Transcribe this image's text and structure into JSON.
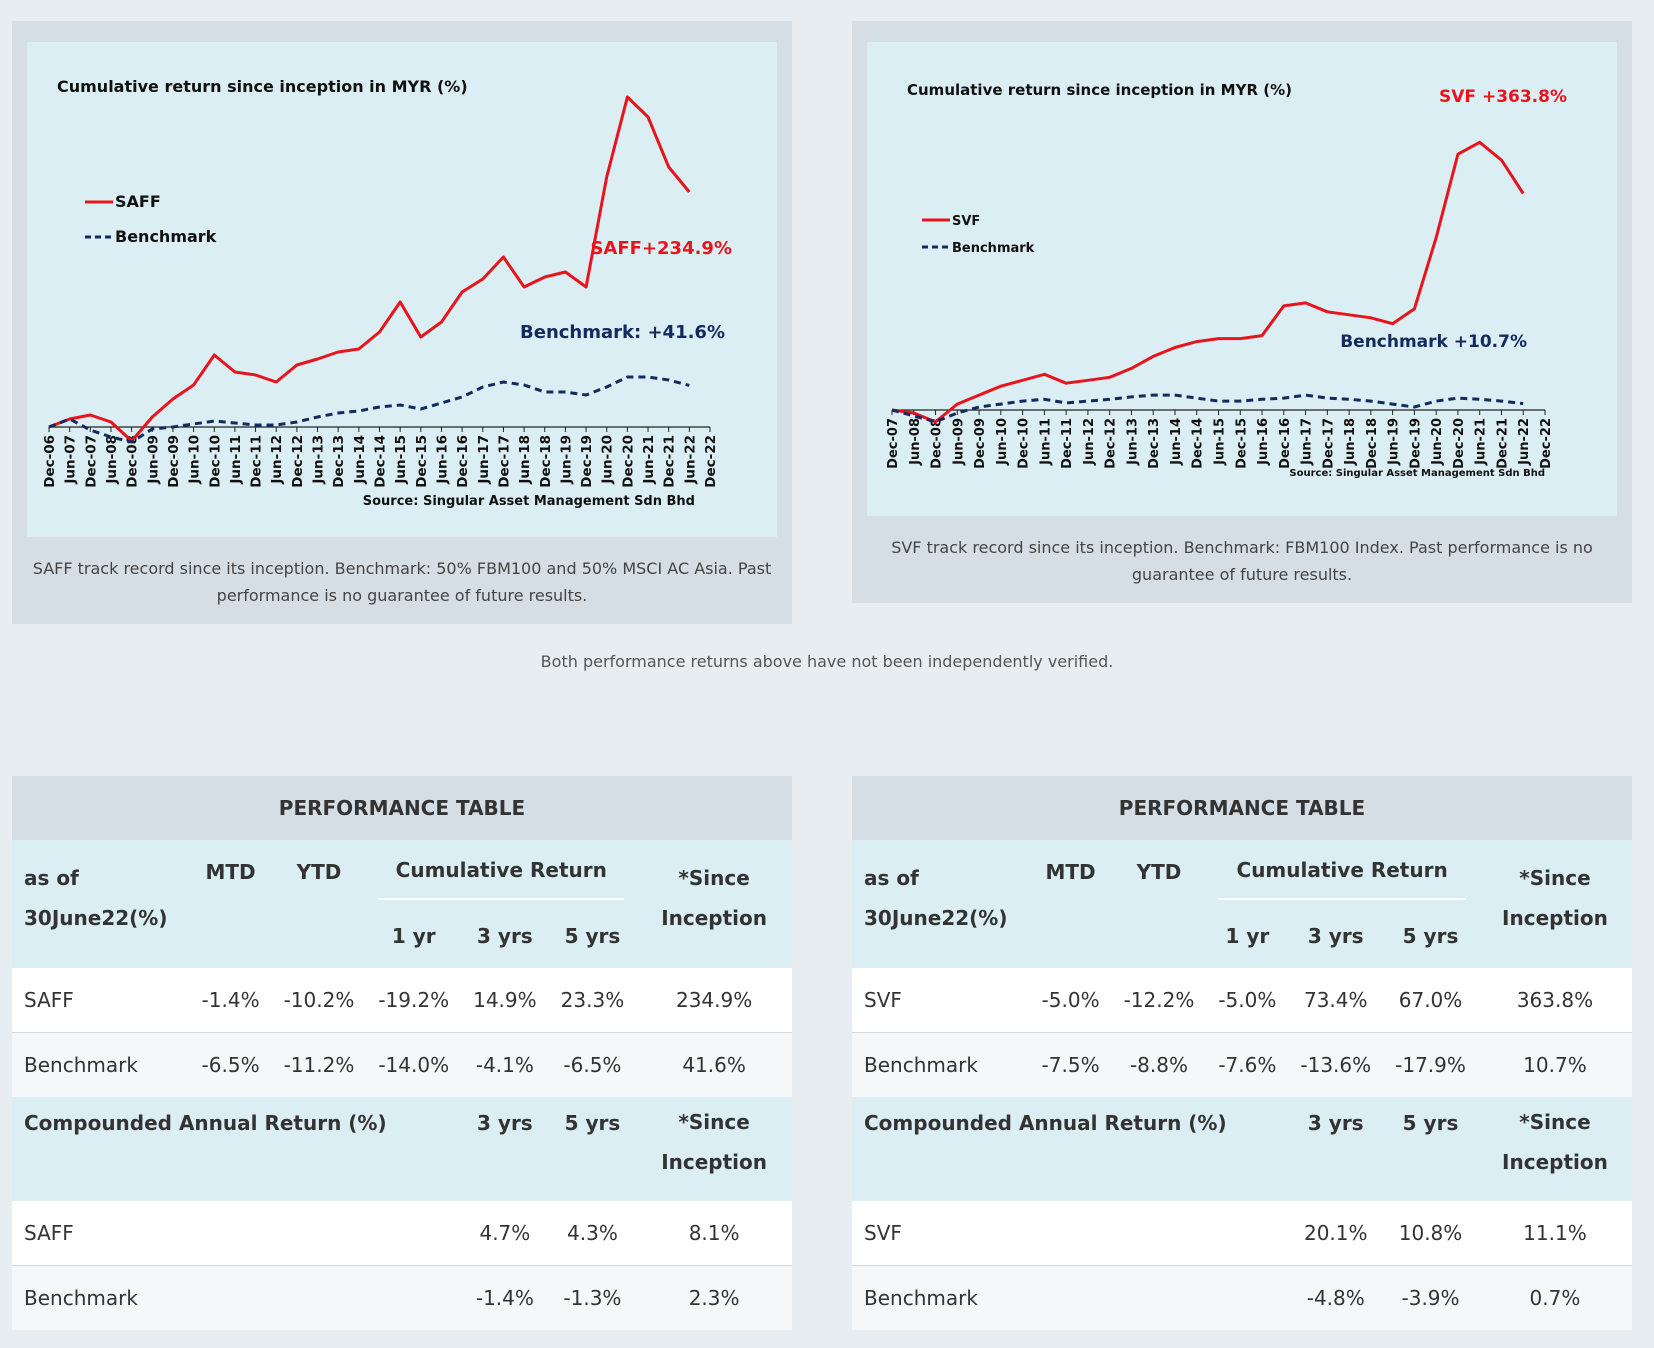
{
  "left_chart": {
    "caption": "SAFF track record since its inception. Benchmark: 50% FBM100 and 50% MSCI AC Asia. Past performance is no guarantee of future results."
  },
  "right_chart": {
    "caption": "SVF track record since its inception. Benchmark: FBM100 Index. Past performance is no guarantee of future results."
  },
  "note": "Both performance returns above have not been independently verified.",
  "chart_data": [
    {
      "type": "line",
      "title": "Cumulative return since inception in MYR (%)",
      "source": "Source: Singular Asset Management Sdn Bhd",
      "legend_placement": "left",
      "x_ticks": [
        "Dec-06",
        "Jun-07",
        "Dec-07",
        "Jun-08",
        "Dec-08",
        "Jun-09",
        "Dec-09",
        "Jun-10",
        "Dec-10",
        "Jun-11",
        "Dec-11",
        "Jun-12",
        "Dec-12",
        "Jun-13",
        "Dec-13",
        "Jun-14",
        "Dec-14",
        "Jun-15",
        "Dec-15",
        "Jun-16",
        "Dec-16",
        "Jun-17",
        "Dec-17",
        "Jun-18",
        "Dec-18",
        "Jun-19",
        "Dec-19",
        "Jun-20",
        "Dec-20",
        "Jun-21",
        "Dec-21",
        "Jun-22",
        "Dec-22"
      ],
      "series": [
        {
          "name": "SAFF",
          "color": "#e8141c",
          "style": "solid",
          "end_label": "SAFF+234.9%",
          "x": [
            "Dec-06",
            "Jun-07",
            "Dec-07",
            "Jun-08",
            "Dec-08",
            "Jun-09",
            "Dec-09",
            "Jun-10",
            "Dec-10",
            "Jun-11",
            "Dec-11",
            "Jun-12",
            "Dec-12",
            "Jun-13",
            "Dec-13",
            "Jun-14",
            "Dec-14",
            "Jun-15",
            "Dec-15",
            "Jun-16",
            "Dec-16",
            "Jun-17",
            "Dec-17",
            "Jun-18",
            "Dec-18",
            "Jun-19",
            "Dec-19",
            "Jun-20",
            "Dec-20",
            "Jun-21",
            "Dec-21",
            "Jun-22"
          ],
          "y": [
            0,
            8,
            12,
            5,
            -14,
            10,
            28,
            42,
            72,
            55,
            52,
            45,
            62,
            68,
            75,
            78,
            95,
            125,
            90,
            105,
            135,
            148,
            170,
            140,
            150,
            155,
            140,
            250,
            330,
            310,
            260,
            235
          ]
        },
        {
          "name": "Benchmark",
          "color": "#142a5c",
          "style": "dashed",
          "end_label": "Benchmark:  +41.6%",
          "x": [
            "Dec-06",
            "Jun-07",
            "Dec-07",
            "Jun-08",
            "Dec-08",
            "Jun-09",
            "Dec-09",
            "Jun-10",
            "Dec-10",
            "Jun-11",
            "Dec-11",
            "Jun-12",
            "Dec-12",
            "Jun-13",
            "Dec-13",
            "Jun-14",
            "Dec-14",
            "Jun-15",
            "Dec-15",
            "Jun-16",
            "Dec-16",
            "Jun-17",
            "Dec-17",
            "Jun-18",
            "Dec-18",
            "Jun-19",
            "Dec-19",
            "Jun-20",
            "Dec-20",
            "Jun-21",
            "Dec-21",
            "Jun-22"
          ],
          "y": [
            0,
            8,
            -3,
            -10,
            -15,
            -2,
            0,
            3,
            6,
            4,
            2,
            2,
            5,
            10,
            14,
            16,
            20,
            22,
            18,
            24,
            30,
            40,
            45,
            42,
            35,
            35,
            32,
            40,
            50,
            50,
            47,
            41.6
          ]
        }
      ]
    },
    {
      "type": "line",
      "title": "Cumulative return since inception in MYR (%)",
      "source": "Source: Singular Asset Management Sdn Bhd",
      "legend_placement": "left",
      "x_ticks": [
        "Dec-07",
        "Jun-08",
        "Dec-08",
        "Jun-09",
        "Dec-09",
        "Jun-10",
        "Dec-10",
        "Jun-11",
        "Dec-11",
        "Jun-12",
        "Dec-12",
        "Jun-13",
        "Dec-13",
        "Jun-14",
        "Dec-14",
        "Jun-15",
        "Dec-15",
        "Jun-16",
        "Dec-16",
        "Jun-17",
        "Dec-17",
        "Jun-18",
        "Dec-18",
        "Jun-19",
        "Dec-19",
        "Jun-20",
        "Dec-20",
        "Jun-21",
        "Dec-21",
        "Jun-22",
        "Dec-22"
      ],
      "series": [
        {
          "name": "SVF",
          "color": "#e8141c",
          "style": "solid",
          "end_label": "SVF  +363.8%",
          "x": [
            "Dec-07",
            "Jun-08",
            "Dec-08",
            "Jun-09",
            "Dec-09",
            "Jun-10",
            "Dec-10",
            "Jun-11",
            "Dec-11",
            "Jun-12",
            "Dec-12",
            "Jun-13",
            "Dec-13",
            "Jun-14",
            "Dec-14",
            "Jun-15",
            "Dec-15",
            "Jun-16",
            "Dec-16",
            "Jun-17",
            "Dec-17",
            "Jun-18",
            "Dec-18",
            "Jun-19",
            "Dec-19",
            "Jun-20",
            "Dec-20",
            "Jun-21",
            "Dec-21",
            "Jun-22"
          ],
          "y": [
            0,
            -5,
            -20,
            10,
            25,
            40,
            50,
            60,
            45,
            50,
            55,
            70,
            90,
            105,
            115,
            120,
            120,
            125,
            175,
            180,
            165,
            160,
            155,
            145,
            170,
            290,
            430,
            450,
            420,
            363.8
          ]
        },
        {
          "name": "Benchmark",
          "color": "#142a5c",
          "style": "dashed",
          "end_label": "Benchmark +10.7%",
          "x": [
            "Dec-07",
            "Jun-08",
            "Dec-08",
            "Jun-09",
            "Dec-09",
            "Jun-10",
            "Dec-10",
            "Jun-11",
            "Dec-11",
            "Jun-12",
            "Dec-12",
            "Jun-13",
            "Dec-13",
            "Jun-14",
            "Dec-14",
            "Jun-15",
            "Dec-15",
            "Jun-16",
            "Dec-16",
            "Jun-17",
            "Dec-17",
            "Jun-18",
            "Dec-18",
            "Jun-19",
            "Dec-19",
            "Jun-20",
            "Dec-20",
            "Jun-21",
            "Dec-21",
            "Jun-22"
          ],
          "y": [
            0,
            -10,
            -20,
            -5,
            5,
            10,
            15,
            18,
            12,
            15,
            18,
            22,
            25,
            25,
            20,
            15,
            15,
            18,
            20,
            25,
            20,
            18,
            15,
            10,
            5,
            15,
            20,
            18,
            15,
            10.7
          ]
        }
      ]
    }
  ],
  "tables": [
    {
      "title": "PERFORMANCE TABLE",
      "asof_line1": "as of",
      "asof_line2": "30June22(%)",
      "h_mtd": "MTD",
      "h_ytd": "YTD",
      "h_cum": "Cumulative Return",
      "h_since1": "*Since",
      "h_since2": "Inception",
      "h_1yr": "1 yr",
      "h_3yrs": "3 yrs",
      "h_5yrs": "5 yrs",
      "rows": [
        {
          "name": "SAFF",
          "mtd": "-1.4%",
          "ytd": "-10.2%",
          "y1": "-19.2%",
          "y3": "14.9%",
          "y5": "23.3%",
          "since": "234.9%"
        },
        {
          "name": "Benchmark",
          "mtd": "-6.5%",
          "ytd": "-11.2%",
          "y1": "-14.0%",
          "y3": "-4.1%",
          "y5": "-6.5%",
          "since": "41.6%"
        }
      ],
      "car_title": "Compounded Annual Return (%)",
      "car_rows": [
        {
          "name": "SAFF",
          "y3": "4.7%",
          "y5": "4.3%",
          "since": "8.1%"
        },
        {
          "name": "Benchmark",
          "y3": "-1.4%",
          "y5": "-1.3%",
          "since": "2.3%"
        }
      ]
    },
    {
      "title": "PERFORMANCE TABLE",
      "asof_line1": "as of",
      "asof_line2": "30June22(%)",
      "h_mtd": "MTD",
      "h_ytd": "YTD",
      "h_cum": "Cumulative Return",
      "h_since1": "*Since",
      "h_since2": "Inception",
      "h_1yr": "1 yr",
      "h_3yrs": "3 yrs",
      "h_5yrs": "5 yrs",
      "rows": [
        {
          "name": "SVF",
          "mtd": "-5.0%",
          "ytd": "-12.2%",
          "y1": "-5.0%",
          "y3": "73.4%",
          "y5": "67.0%",
          "since": "363.8%"
        },
        {
          "name": "Benchmark",
          "mtd": "-7.5%",
          "ytd": "-8.8%",
          "y1": "-7.6%",
          "y3": "-13.6%",
          "y5": "-17.9%",
          "since": "10.7%"
        }
      ],
      "car_title": "Compounded Annual Return (%)",
      "car_rows": [
        {
          "name": "SVF",
          "y3": "20.1%",
          "y5": "10.8%",
          "since": "11.1%"
        },
        {
          "name": "Benchmark",
          "y3": "-4.8%",
          "y5": "-3.9%",
          "since": "0.7%"
        }
      ]
    }
  ]
}
